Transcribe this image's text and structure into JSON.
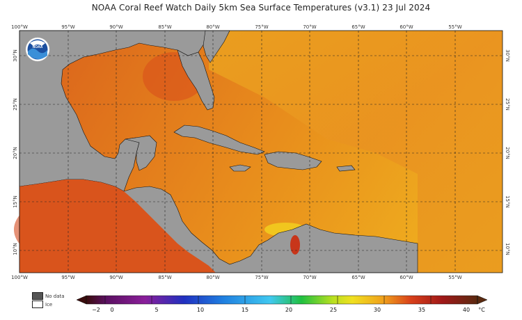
{
  "title": "NOAA Coral Reef Watch Daily 5km Sea Surface Temperatures  (v3.1)   23 Jul 2024",
  "logo": {
    "text": "NOAA",
    "icon": "noaa-logo"
  },
  "longitude_labels": [
    "100°W",
    "95°W",
    "90°W",
    "85°W",
    "80°W",
    "75°W",
    "70°W",
    "65°W",
    "60°W",
    "55°W"
  ],
  "latitude_labels": [
    "30°N",
    "25°N",
    "20°N",
    "15°N",
    "10°N"
  ],
  "legend": {
    "no_data_label": "No data",
    "ice_label": "Ice",
    "no_data_color": "#555555",
    "ice_color": "#ffffff"
  },
  "colorbar": {
    "unit": "°C",
    "range": [
      -2,
      40
    ],
    "ticks": [
      "−2",
      "0",
      "5",
      "10",
      "15",
      "20",
      "25",
      "30",
      "35",
      "40"
    ],
    "colors": {
      "land": "#9a9a9a",
      "warm_ocean": "#e8861b",
      "hot_ocean": "#d8561a",
      "cool_ocean": "#eeb01d"
    }
  }
}
